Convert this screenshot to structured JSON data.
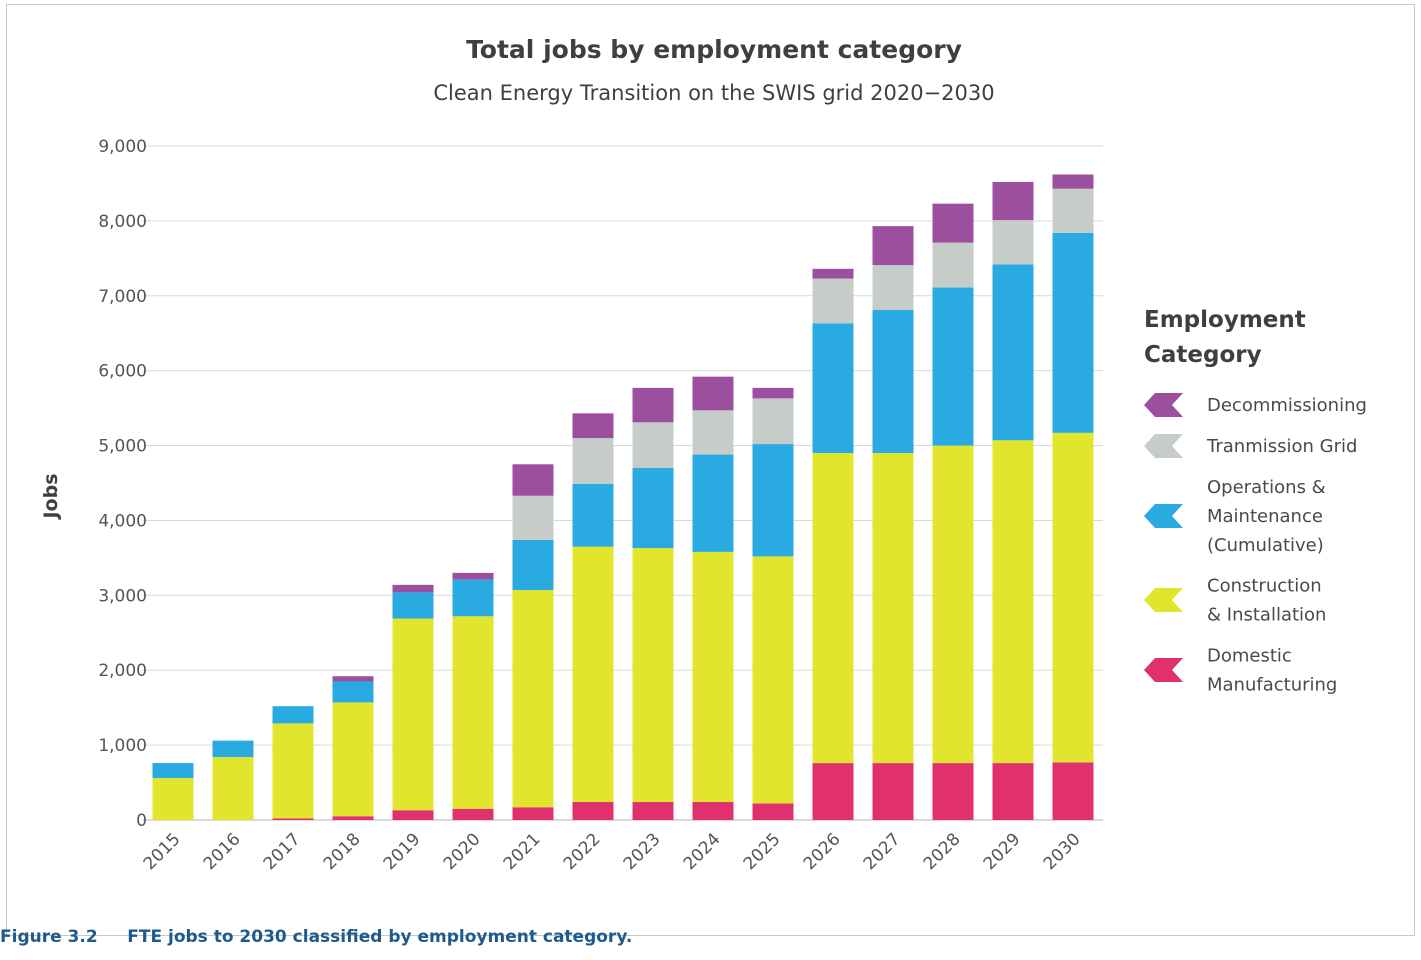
{
  "caption": "Figure 3.2     FTE jobs to 2030 classified by employment category.",
  "chart_data": {
    "type": "bar",
    "stacked": true,
    "title": "Total jobs by employment category",
    "subtitle": "Clean Energy Transition on the SWIS grid 2020−2030",
    "ylabel": "Jobs",
    "ylim": [
      0,
      9000
    ],
    "yticks": [
      0,
      1000,
      2000,
      3000,
      4000,
      5000,
      6000,
      7000,
      8000,
      9000
    ],
    "ytick_labels": [
      "0",
      "1,000",
      "2,000",
      "3,000",
      "4,000",
      "5,000",
      "6,000",
      "7,000",
      "8,000",
      "9,000"
    ],
    "grid": true,
    "legend_title": [
      "Employment",
      "Category"
    ],
    "legend_position": "right",
    "categories": [
      "2015",
      "2016",
      "2017",
      "2018",
      "2019",
      "2020",
      "2021",
      "2022",
      "2023",
      "2024",
      "2025",
      "2026",
      "2027",
      "2028",
      "2029",
      "2030"
    ],
    "series": [
      {
        "name": "Domestic Manufacturing",
        "legend_lines": [
          "Domestic",
          "Manufacturing"
        ],
        "color": "#e0306e",
        "values": [
          0,
          0,
          20,
          50,
          130,
          150,
          170,
          240,
          240,
          240,
          220,
          760,
          760,
          760,
          760,
          770
        ]
      },
      {
        "name": "Construction & Installation",
        "legend_lines": [
          "Construction",
          "& Installation"
        ],
        "color": "#e2e52e",
        "values": [
          560,
          840,
          1270,
          1520,
          2560,
          2570,
          2900,
          3410,
          3390,
          3340,
          3300,
          4140,
          4140,
          4240,
          4310,
          4400
        ]
      },
      {
        "name": "Operations & Maintenance (Cumulative)",
        "legend_lines": [
          "Operations &",
          "Maintenance",
          "(Cumulative)"
        ],
        "color": "#29abe2",
        "values": [
          200,
          220,
          230,
          280,
          350,
          490,
          670,
          840,
          1070,
          1300,
          1500,
          1730,
          1910,
          2110,
          2350,
          2670
        ]
      },
      {
        "name": "Tranmission Grid",
        "legend_lines": [
          "Tranmission Grid"
        ],
        "color": "#c6cdc8",
        "values": [
          0,
          0,
          0,
          0,
          0,
          0,
          590,
          610,
          610,
          590,
          610,
          600,
          600,
          600,
          590,
          590
        ]
      },
      {
        "name": "Decommissioning",
        "legend_lines": [
          "Decommissioning"
        ],
        "color": "#9b4f9e",
        "values": [
          0,
          0,
          0,
          70,
          100,
          90,
          420,
          330,
          460,
          450,
          140,
          130,
          520,
          520,
          510,
          190
        ]
      }
    ]
  }
}
